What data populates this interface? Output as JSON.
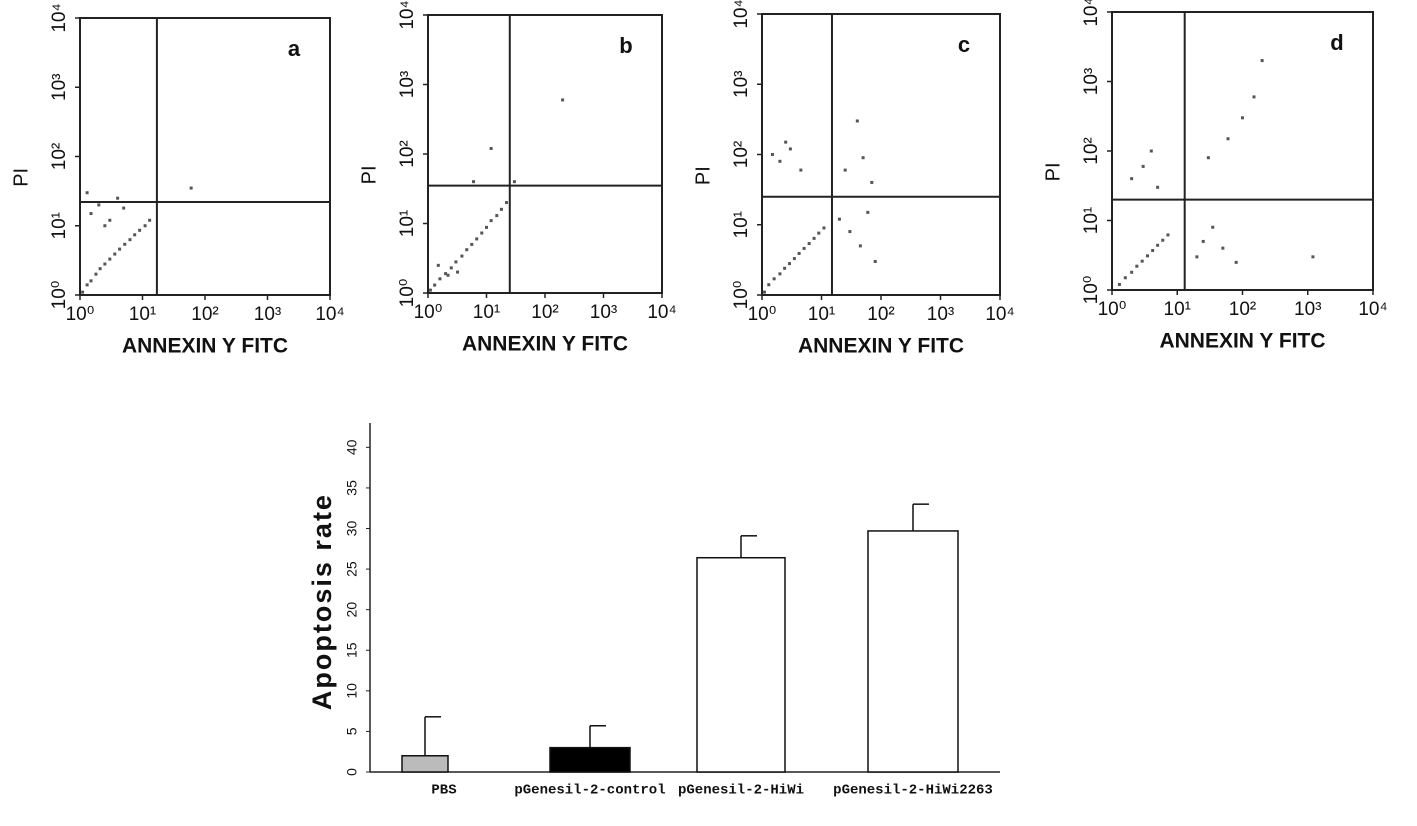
{
  "chart_data": [
    {
      "type": "scatter",
      "label": "a",
      "xlabel": "ANNEXIN Y FITC",
      "ylabel": "PI",
      "log": true,
      "color": "#555555",
      "xlim": [
        1,
        10000
      ],
      "ylim": [
        1,
        10000
      ],
      "xticks": [
        {
          "value": 1,
          "label": "10⁰"
        },
        {
          "value": 10,
          "label": "10¹"
        },
        {
          "value": 100,
          "label": "10²"
        },
        {
          "value": 1000,
          "label": "10³"
        },
        {
          "value": 10000,
          "label": "10⁴"
        }
      ],
      "yticks": [
        {
          "value": 1,
          "label": "10⁰"
        },
        {
          "value": 10,
          "label": "10¹"
        },
        {
          "value": 100,
          "label": "10²"
        },
        {
          "value": 1000,
          "label": "10³"
        },
        {
          "value": 10000,
          "label": "10⁴"
        }
      ],
      "gates": {
        "x": 17,
        "y": 22
      },
      "x": [
        1.1,
        1.3,
        1.5,
        1.8,
        2.1,
        2.5,
        3,
        3.6,
        4.3,
        5.2,
        6.3,
        7.5,
        9,
        11,
        13,
        1.5,
        2,
        3,
        4,
        2.5,
        5,
        1.3,
        60
      ],
      "y": [
        1.1,
        1.4,
        1.6,
        2,
        2.4,
        2.8,
        3.3,
        3.9,
        4.6,
        5.4,
        6.3,
        7.4,
        8.6,
        10,
        12,
        15,
        20,
        12,
        25,
        10,
        18,
        30,
        35
      ]
    },
    {
      "type": "scatter",
      "label": "b",
      "xlabel": "ANNEXIN Y FITC",
      "ylabel": "PI",
      "log": true,
      "color": "#555555",
      "xlim": [
        1,
        10000
      ],
      "ylim": [
        1,
        10000
      ],
      "xticks": [
        {
          "value": 1,
          "label": "10⁰"
        },
        {
          "value": 10,
          "label": "10¹"
        },
        {
          "value": 100,
          "label": "10²"
        },
        {
          "value": 1000,
          "label": "10³"
        },
        {
          "value": 10000,
          "label": "10⁴"
        }
      ],
      "yticks": [
        {
          "value": 1,
          "label": "10⁰"
        },
        {
          "value": 10,
          "label": "10¹"
        },
        {
          "value": 100,
          "label": "10²"
        },
        {
          "value": 1000,
          "label": "10³"
        },
        {
          "value": 10000,
          "label": "10⁴"
        }
      ],
      "gates": {
        "x": 25,
        "y": 35
      },
      "x": [
        1.1,
        1.3,
        1.6,
        2,
        2.5,
        3,
        3.8,
        4.6,
        5.6,
        6.8,
        8.3,
        10,
        12,
        15,
        18,
        22,
        1.5,
        2.2,
        3.2,
        6,
        12,
        30,
        200
      ],
      "y": [
        1.1,
        1.3,
        1.6,
        1.9,
        2.3,
        2.8,
        3.4,
        4.2,
        5,
        6,
        7.3,
        8.8,
        11,
        13,
        16,
        20,
        2.5,
        1.8,
        2,
        40,
        120,
        40,
        600
      ]
    },
    {
      "type": "scatter",
      "label": "c",
      "xlabel": "ANNEXIN Y FITC",
      "ylabel": "PI",
      "log": true,
      "color": "#555555",
      "xlim": [
        1,
        10000
      ],
      "ylim": [
        1,
        10000
      ],
      "xticks": [
        {
          "value": 1,
          "label": "10⁰"
        },
        {
          "value": 10,
          "label": "10¹"
        },
        {
          "value": 100,
          "label": "10²"
        },
        {
          "value": 1000,
          "label": "10³"
        },
        {
          "value": 10000,
          "label": "10⁴"
        }
      ],
      "yticks": [
        {
          "value": 1,
          "label": "10⁰"
        },
        {
          "value": 10,
          "label": "10¹"
        },
        {
          "value": 100,
          "label": "10²"
        },
        {
          "value": 1000,
          "label": "10³"
        },
        {
          "value": 10000,
          "label": "10⁴"
        }
      ],
      "gates": {
        "x": 15,
        "y": 25
      },
      "x": [
        1.1,
        1.3,
        1.6,
        2,
        2.4,
        2.9,
        3.5,
        4.2,
        5.1,
        6.2,
        7.5,
        9,
        11,
        1.5,
        2,
        3,
        4.5,
        2.5,
        20,
        30,
        45,
        60,
        80,
        25,
        50,
        70,
        40
      ],
      "y": [
        1.1,
        1.4,
        1.7,
        2,
        2.4,
        2.8,
        3.3,
        3.9,
        4.6,
        5.4,
        6.4,
        7.6,
        9,
        100,
        80,
        120,
        60,
        150,
        12,
        8,
        5,
        15,
        3,
        60,
        90,
        40,
        300
      ]
    },
    {
      "type": "scatter",
      "label": "d",
      "xlabel": "ANNEXIN Y FITC",
      "ylabel": "PI",
      "log": true,
      "color": "#555555",
      "xlim": [
        1,
        10000
      ],
      "ylim": [
        1,
        10000
      ],
      "xticks": [
        {
          "value": 1,
          "label": "10⁰"
        },
        {
          "value": 10,
          "label": "10¹"
        },
        {
          "value": 100,
          "label": "10²"
        },
        {
          "value": 1000,
          "label": "10³"
        },
        {
          "value": 10000,
          "label": "10⁴"
        }
      ],
      "yticks": [
        {
          "value": 1,
          "label": "10⁰"
        },
        {
          "value": 10,
          "label": "10¹"
        },
        {
          "value": 100,
          "label": "10²"
        },
        {
          "value": 1000,
          "label": "10³"
        },
        {
          "value": 10000,
          "label": "10⁴"
        }
      ],
      "gates": {
        "x": 13,
        "y": 20
      },
      "x": [
        1.3,
        1.6,
        2,
        2.4,
        2.9,
        3.5,
        4.2,
        5,
        6,
        7.2,
        2,
        3,
        4,
        5,
        20,
        25,
        35,
        50,
        80,
        30,
        60,
        100,
        150,
        200,
        1200
      ],
      "y": [
        1.2,
        1.5,
        1.8,
        2.2,
        2.6,
        3.1,
        3.7,
        4.4,
        5.2,
        6.2,
        40,
        60,
        100,
        30,
        3,
        5,
        8,
        4,
        2.5,
        80,
        150,
        300,
        600,
        2000,
        3
      ]
    },
    {
      "type": "bar",
      "ylabel": "Apoptosis rate",
      "categories": [
        "PBS",
        "pGenesil-2-control",
        "pGenesil-2-HiWi",
        "pGenesil-2-HiWi2263"
      ],
      "values": [
        2,
        3,
        26.4,
        29.7
      ],
      "errors": [
        4.8,
        2.7,
        2.7,
        3.3
      ],
      "colors": [
        "#bbbbbb",
        "#000000",
        "#ffffff",
        "#ffffff"
      ],
      "ylim": [
        0,
        43
      ],
      "yticks": [
        0,
        5,
        10,
        15,
        20,
        25,
        30,
        35,
        40
      ]
    }
  ]
}
